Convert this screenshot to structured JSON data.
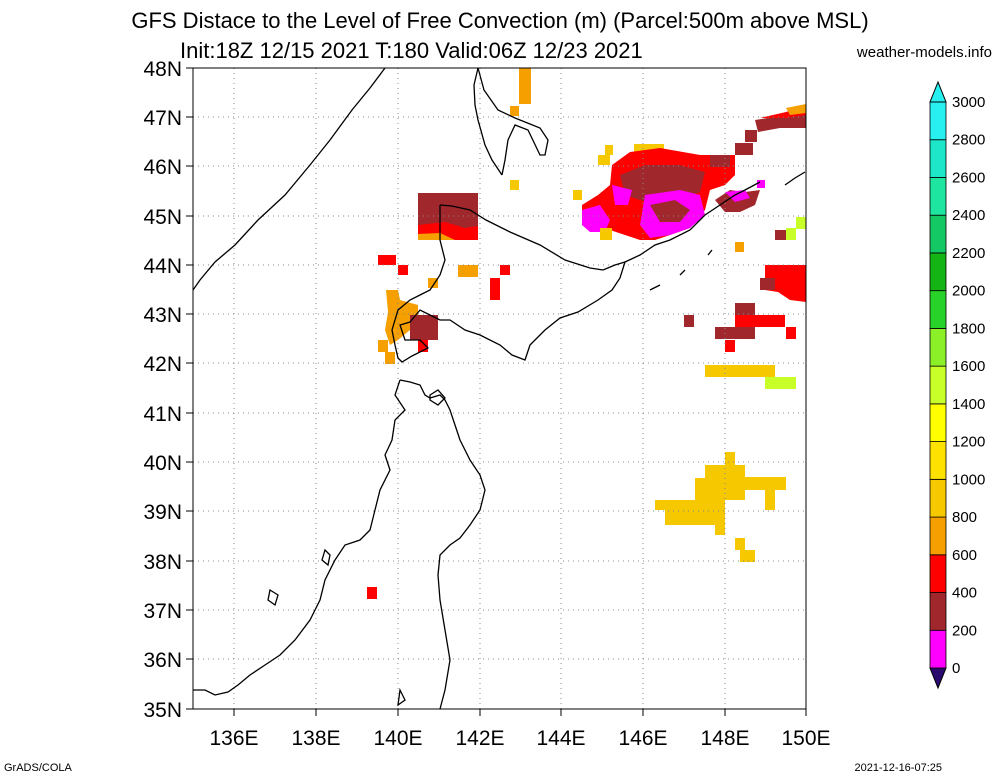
{
  "title_line1": "GFS Distace to the Level of Free Convection (m) (Parcel:500m above MSL)",
  "title_line2": "Init:18Z 12/15 2021 T:180 Valid:06Z 12/23 2021",
  "site": "weather-models.info",
  "footer_left": "GrADS/COLA",
  "footer_right": "2021-12-16-07:25",
  "lat_labels": [
    "48N",
    "47N",
    "46N",
    "45N",
    "44N",
    "43N",
    "42N",
    "41N",
    "40N",
    "39N",
    "38N",
    "37N",
    "36N",
    "35N"
  ],
  "lon_labels": [
    "136E",
    "138E",
    "140E",
    "142E",
    "144E",
    "146E",
    "148E",
    "150E"
  ],
  "colorbar": {
    "levels": [
      "0",
      "200",
      "400",
      "600",
      "800",
      "1000",
      "1200",
      "1400",
      "1600",
      "1800",
      "2000",
      "2200",
      "2400",
      "2600",
      "2800",
      "3000"
    ],
    "colors": [
      "#2b0a6e",
      "#ff00ff",
      "#a0282d",
      "#ff0000",
      "#f5a000",
      "#f5c800",
      "#ffe100",
      "#ffff00",
      "#c8ff28",
      "#8cf028",
      "#28d228",
      "#14b414",
      "#14c864",
      "#1ee6a0",
      "#1ee6c8",
      "#28f0f0"
    ]
  },
  "colors": {
    "magenta": "#ff00ff",
    "brown": "#a0282d",
    "red": "#ff0000",
    "orange": "#f5a000",
    "gold": "#f5c800",
    "lime": "#c8ff28"
  }
}
